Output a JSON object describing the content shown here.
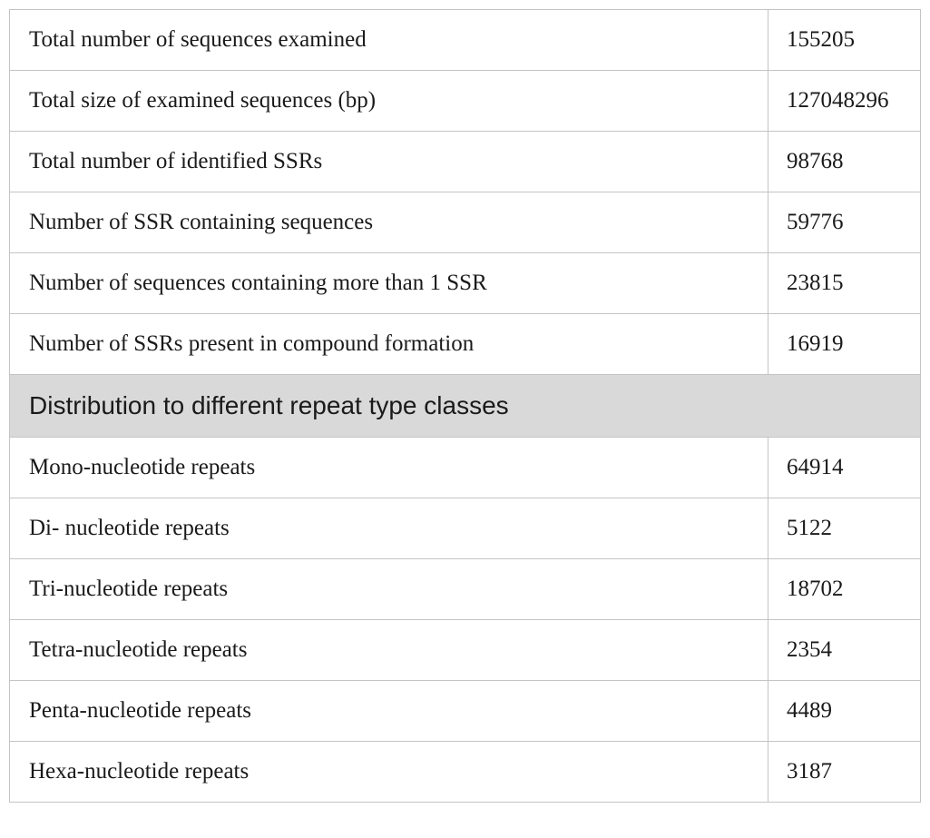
{
  "summary_rows": [
    {
      "label": "Total number of sequences examined",
      "value": "155205"
    },
    {
      "label": "Total size of examined sequences (bp)",
      "value": "127048296"
    },
    {
      "label": "Total number of identified SSRs",
      "value": "98768"
    },
    {
      "label": "Number of SSR containing sequences",
      "value": "59776"
    },
    {
      "label": "Number of sequences containing more than 1 SSR",
      "value": "23815"
    },
    {
      "label": "Number of SSRs present in compound formation",
      "value": "16919"
    }
  ],
  "section_heading": "Distribution to different repeat type classes",
  "repeat_rows": [
    {
      "label": "Mono-nucleotide repeats",
      "value": "64914"
    },
    {
      "label": "Di- nucleotide repeats",
      "value": "5122"
    },
    {
      "label": "Tri-nucleotide repeats",
      "value": "18702"
    },
    {
      "label": "Tetra-nucleotide repeats",
      "value": "2354"
    },
    {
      "label": "Penta-nucleotide repeats",
      "value": "4489"
    },
    {
      "label": "Hexa-nucleotide repeats",
      "value": "3187"
    }
  ]
}
